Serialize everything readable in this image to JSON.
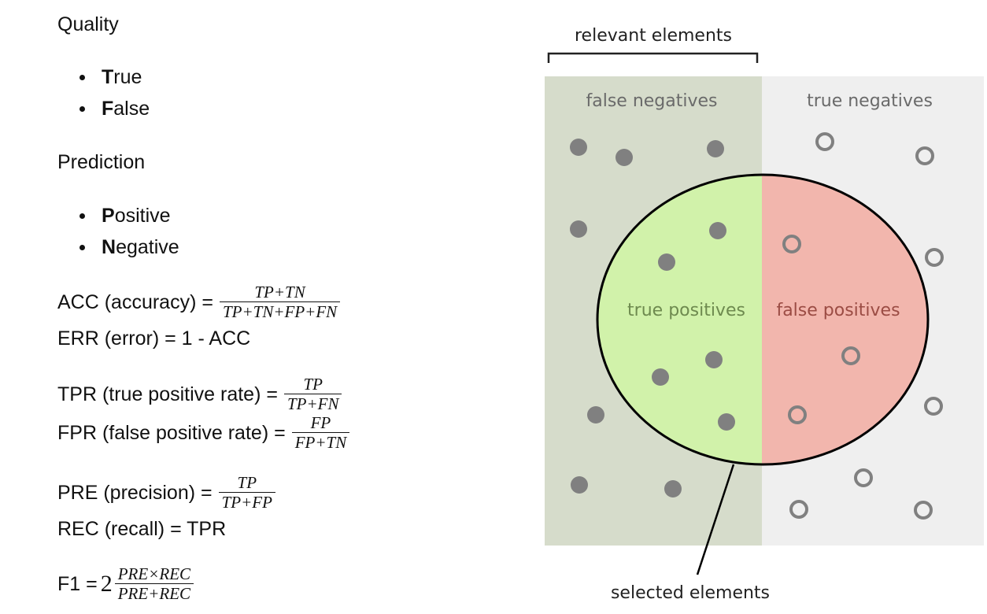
{
  "left": {
    "quality_heading": "Quality",
    "quality_items": [
      {
        "initial": "T",
        "rest": "rue"
      },
      {
        "initial": "F",
        "rest": "alse"
      }
    ],
    "prediction_heading": "Prediction",
    "prediction_items": [
      {
        "initial": "P",
        "rest": "ositive"
      },
      {
        "initial": "N",
        "rest": "egative"
      }
    ],
    "formulas": {
      "acc": {
        "label": "ACC (accuracy) =",
        "num": "TP+TN",
        "den": "TP+TN+FP+FN"
      },
      "err": {
        "label": "ERR (error) = 1 - ACC"
      },
      "tpr": {
        "label": "TPR (true positive rate) =",
        "num": "TP",
        "den": "TP+FN"
      },
      "fpr": {
        "label": "FPR (false positive rate) =",
        "num": "FP",
        "den": "FP+TN"
      },
      "pre": {
        "label": "PRE (precision) =",
        "num": "TP",
        "den": "TP+FP"
      },
      "rec": {
        "label": "REC (recall) = TPR"
      },
      "f1": {
        "label": "F1 =",
        "coef": "2",
        "num": "PRE×REC",
        "den": "PRE+REC"
      }
    }
  },
  "diagram": {
    "relevant_label": "relevant elements",
    "selected_label": "selected elements",
    "false_negatives_label": "false negatives",
    "true_negatives_label": "true negatives",
    "true_positives_label": "true positives",
    "false_positives_label": "false positives",
    "colors": {
      "relevant_bg": "#d6dccb",
      "irrelevant_bg": "#efefef",
      "true_positive_fill": "#d1f2aa",
      "false_positive_fill": "#f2b6ad",
      "dot": "#808080",
      "label_fn": "#6a6a6a",
      "label_tp": "#6e8a4f",
      "label_fp": "#9b4c44"
    }
  }
}
